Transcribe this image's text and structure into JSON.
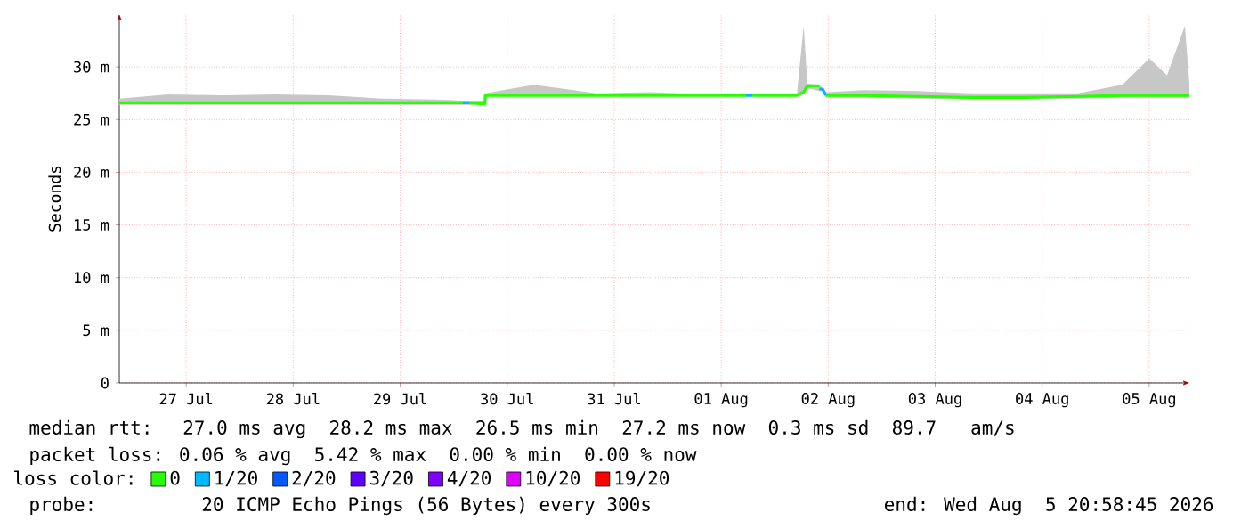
{
  "chart_data": {
    "type": "line",
    "ylabel": "Seconds",
    "legend_title": "loss color:",
    "legend": "bottom",
    "grid": true,
    "xlim": [
      "2026-07-26T21:00",
      "2026-08-05T21:00"
    ],
    "ylim": [
      0,
      35
    ],
    "xticks": [
      {
        "value": "2026-07-27T12:00",
        "label": "27 Jul"
      },
      {
        "value": "2026-07-28T12:00",
        "label": "28 Jul"
      },
      {
        "value": "2026-07-29T12:00",
        "label": "29 Jul"
      },
      {
        "value": "2026-07-30T12:00",
        "label": "30 Jul"
      },
      {
        "value": "2026-07-31T12:00",
        "label": "31 Jul"
      },
      {
        "value": "2026-08-01T12:00",
        "label": "01 Aug"
      },
      {
        "value": "2026-08-02T12:00",
        "label": "02 Aug"
      },
      {
        "value": "2026-08-03T12:00",
        "label": "03 Aug"
      },
      {
        "value": "2026-08-04T12:00",
        "label": "04 Aug"
      },
      {
        "value": "2026-08-05T12:00",
        "label": "05 Aug"
      }
    ],
    "yticks": [
      0,
      {
        "value": 5,
        "label": "5 m"
      },
      {
        "value": 10,
        "label": "10 m"
      },
      {
        "value": 15,
        "label": "15 m"
      },
      {
        "value": 20,
        "label": "20 m"
      },
      {
        "value": 25,
        "label": "25 m"
      },
      {
        "value": 30,
        "label": "30 m"
      }
    ],
    "x": [
      "2026-07-26T21:00",
      "2026-07-27T08:00",
      "2026-07-27T20:00",
      "2026-07-28T08:00",
      "2026-07-28T20:00",
      "2026-07-29T08:00",
      "2026-07-29T20:00",
      "2026-07-30T02:00",
      "2026-07-30T02:45",
      "2026-07-30T03:30",
      "2026-07-30T07:00",
      "2026-07-30T07:05",
      "2026-07-30T18:00",
      "2026-07-31T08:00",
      "2026-07-31T20:00",
      "2026-08-01T08:00",
      "2026-08-01T17:30",
      "2026-08-01T18:15",
      "2026-08-01T19:00",
      "2026-08-02T05:00",
      "2026-08-02T06:30",
      "2026-08-02T07:20",
      "2026-08-02T10:00",
      "2026-08-02T10:45",
      "2026-08-02T11:30",
      "2026-08-02T20:00",
      "2026-08-03T08:00",
      "2026-08-03T20:00",
      "2026-08-04T08:00",
      "2026-08-04T20:00",
      "2026-08-05T06:00",
      "2026-08-05T12:00",
      "2026-08-05T16:00",
      "2026-08-05T20:00",
      "2026-08-05T21:00"
    ],
    "series": [
      {
        "name": "0",
        "color": "#26ff00",
        "values": [
          26.6,
          26.6,
          26.6,
          26.6,
          26.6,
          26.6,
          26.6,
          26.6,
          null,
          26.6,
          26.5,
          27.3,
          27.3,
          27.3,
          27.3,
          27.3,
          27.3,
          null,
          27.3,
          27.3,
          27.6,
          28.2,
          28.2,
          null,
          27.3,
          27.3,
          27.2,
          27.1,
          27.1,
          27.2,
          27.3,
          27.3,
          27.3,
          27.3,
          27.3
        ],
        "lower": [
          26.4,
          26.4,
          26.4,
          26.4,
          26.4,
          26.4,
          26.4,
          26.4,
          26.4,
          26.4,
          26.4,
          27.2,
          27.2,
          27.2,
          27.2,
          27.2,
          27.2,
          27.2,
          27.2,
          27.2,
          27.4,
          28.0,
          27.7,
          27.7,
          27.1,
          27.1,
          27.0,
          27.0,
          27.0,
          27.0,
          27.1,
          27.1,
          27.1,
          27.1,
          27.1
        ],
        "upper": [
          27.0,
          27.4,
          27.3,
          27.4,
          27.3,
          27.0,
          26.9,
          26.8,
          26.8,
          26.8,
          26.8,
          27.5,
          28.3,
          27.5,
          27.6,
          27.4,
          27.5,
          27.5,
          27.5,
          27.5,
          33.9,
          28.4,
          28.3,
          28.0,
          27.6,
          27.8,
          27.7,
          27.5,
          27.5,
          27.5,
          28.3,
          30.8,
          29.2,
          33.9,
          28.5
        ]
      },
      {
        "name": "1/20",
        "color": "#00b8ff",
        "values": [
          null,
          null,
          null,
          null,
          null,
          null,
          null,
          26.6,
          26.6,
          26.6,
          null,
          null,
          null,
          null,
          null,
          null,
          27.3,
          27.3,
          27.3,
          null,
          null,
          null,
          27.9,
          27.9,
          27.3,
          null,
          null,
          null,
          null,
          null,
          null,
          null,
          null,
          null,
          null
        ]
      },
      {
        "name": "2/20",
        "color": "#0059ff",
        "values": [
          null,
          null,
          null,
          null,
          null,
          null,
          null,
          null,
          null,
          null,
          null,
          null,
          null,
          null,
          null,
          null,
          null,
          null,
          null,
          null,
          null,
          null,
          null,
          null,
          null,
          null,
          null,
          null,
          null,
          null,
          null,
          null,
          null,
          null,
          null
        ]
      },
      {
        "name": "3/20",
        "color": "#5e00ff",
        "values": [
          null,
          null,
          null,
          null,
          null,
          null,
          null,
          null,
          null,
          null,
          null,
          null,
          null,
          null,
          null,
          null,
          null,
          null,
          null,
          null,
          null,
          null,
          null,
          null,
          null,
          null,
          null,
          null,
          null,
          null,
          null,
          null,
          null,
          null,
          null
        ]
      },
      {
        "name": "4/20",
        "color": "#7e00ff",
        "values": [
          null,
          null,
          null,
          null,
          null,
          null,
          null,
          null,
          null,
          null,
          null,
          null,
          null,
          null,
          null,
          null,
          null,
          null,
          null,
          null,
          null,
          null,
          null,
          null,
          null,
          null,
          null,
          null,
          null,
          null,
          null,
          null,
          null,
          null,
          null
        ]
      },
      {
        "name": "10/20",
        "color": "#dd00ff",
        "values": [
          null,
          null,
          null,
          null,
          null,
          null,
          null,
          null,
          null,
          null,
          null,
          null,
          null,
          null,
          null,
          null,
          null,
          null,
          null,
          null,
          null,
          null,
          null,
          null,
          null,
          null,
          null,
          null,
          null,
          null,
          null,
          null,
          null,
          null,
          null
        ]
      },
      {
        "name": "19/20",
        "color": "#ff0000",
        "values": [
          null,
          null,
          null,
          null,
          null,
          null,
          null,
          null,
          null,
          null,
          null,
          null,
          null,
          null,
          null,
          null,
          null,
          null,
          null,
          null,
          null,
          null,
          null,
          null,
          null,
          null,
          null,
          null,
          null,
          null,
          null,
          null,
          null,
          null,
          null
        ]
      }
    ],
    "annotations": [
      "median rtt:  27.0 ms avg  28.2 ms max  26.5 ms min  27.2 ms now  0.3 ms sd  89.7   am/s",
      "packet loss: 0.06 % avg  5.42 % max  0.00 % min  0.00 % now",
      "probe:       20 ICMP Echo Pings (56 Bytes) every 300s",
      "end: Wed Aug  5 20:58:45 2026"
    ]
  }
}
